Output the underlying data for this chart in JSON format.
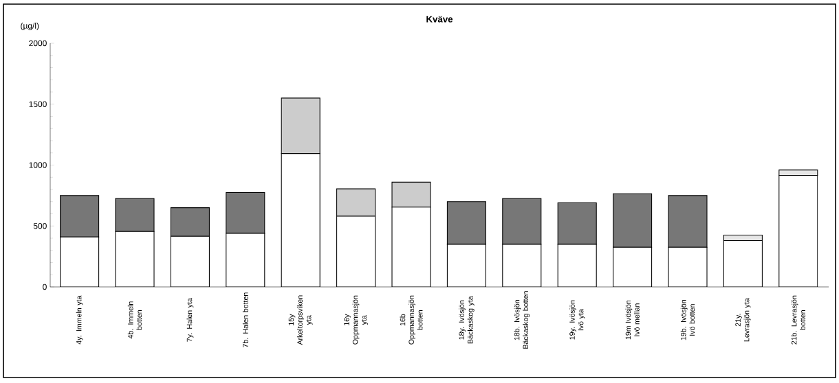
{
  "chart_data": {
    "type": "bar",
    "title": "Kväve",
    "ylabel": "(µg/l)",
    "stacked": true,
    "categories": [
      "4y. Immeln yta",
      "4b. Immeln botten",
      "7y. Halen yta",
      "7b. Halen botten",
      "15y Arkeltorpsviken yta",
      "16y Oppmannasjön yta",
      "16b Oppmannasjön botten",
      "18y. Ivösjön Bäckaskog yta",
      "18b. Ivösjön Bäckaskog botten",
      "19y. Ivösjön Ivö yta",
      "19m Ivösjön Ivö mellan",
      "19b. Ivösjön Ivö botten",
      "21y. Levrasjön yta",
      "21b. Levrasjön botten"
    ],
    "series": [
      {
        "color": "#ffffff",
        "values": [
          410,
          455,
          415,
          440,
          1095,
          580,
          655,
          350,
          350,
          350,
          325,
          325,
          380,
          915
        ]
      },
      {
        "colors": [
          "#777777",
          "#777777",
          "#777777",
          "#777777",
          "#cccccc",
          "#cccccc",
          "#cccccc",
          "#777777",
          "#777777",
          "#777777",
          "#777777",
          "#777777",
          "#e6e6e6",
          "#e6e6e6"
        ],
        "values": [
          340,
          270,
          235,
          335,
          455,
          225,
          205,
          350,
          375,
          340,
          440,
          425,
          45,
          45
        ]
      }
    ],
    "ylim": [
      0,
      2000
    ],
    "yticks": [
      0,
      500,
      1000,
      1500,
      2000
    ]
  }
}
